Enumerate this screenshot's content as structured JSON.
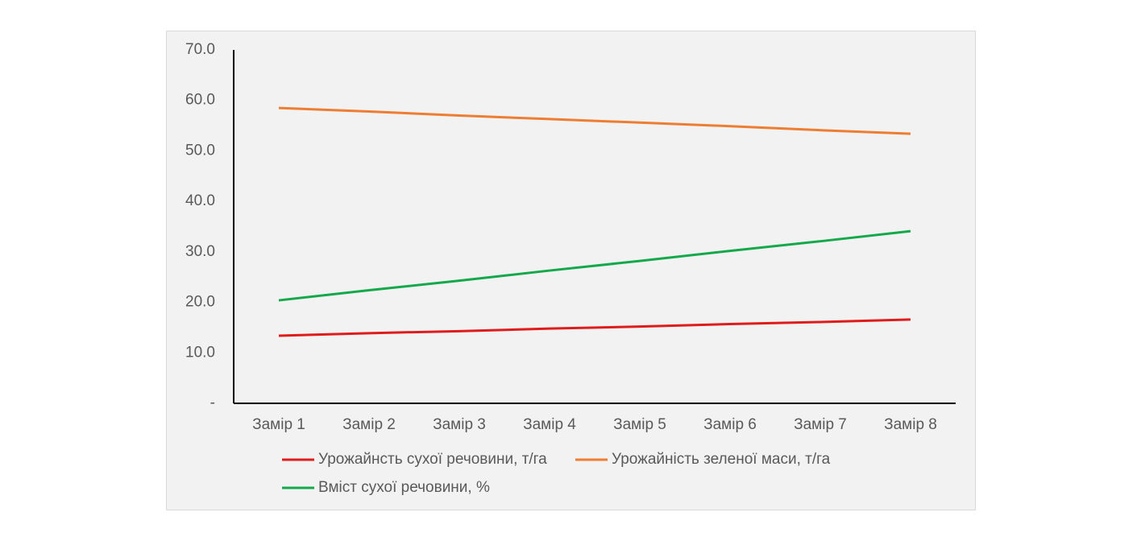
{
  "chart_data": {
    "type": "line",
    "categories": [
      "Замір 1",
      "Замір 2",
      "Замір 3",
      "Замір 4",
      "Замір 5",
      "Замір 6",
      "Замір 7",
      "Замір 8"
    ],
    "series": [
      {
        "name": "Урожайнсть сухої речовини, т/га",
        "color": "#e01b1b",
        "values": [
          13.4,
          13.9,
          14.3,
          14.8,
          15.2,
          15.7,
          16.1,
          16.6
        ]
      },
      {
        "name": "Урожайність зеленої маси, т/га",
        "color": "#ed7d31",
        "values": [
          58.5,
          57.8,
          57.0,
          56.3,
          55.6,
          54.9,
          54.1,
          53.4
        ]
      },
      {
        "name": "Вміст сухої речовини, %",
        "color": "#13a84a",
        "values": [
          20.4,
          22.4,
          24.3,
          26.3,
          28.2,
          30.2,
          32.1,
          34.1
        ]
      }
    ],
    "ylim": [
      0,
      70
    ],
    "yticks": [
      {
        "value": 0,
        "label": "-"
      },
      {
        "value": 10,
        "label": "10.0"
      },
      {
        "value": 20,
        "label": "20.0"
      },
      {
        "value": 30,
        "label": "30.0"
      },
      {
        "value": 40,
        "label": "40.0"
      },
      {
        "value": 50,
        "label": "50.0"
      },
      {
        "value": 60,
        "label": "60.0"
      },
      {
        "value": 70,
        "label": "70.0"
      }
    ],
    "grid": false
  }
}
